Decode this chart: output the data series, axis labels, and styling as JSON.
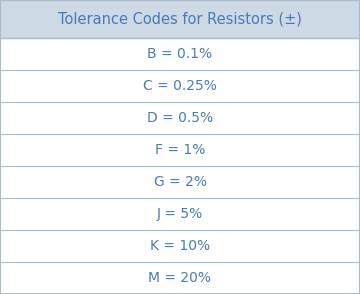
{
  "title": "Tolerance Codes for Resistors (±)",
  "rows": [
    "B = 0.1%",
    "C = 0.25%",
    "D = 0.5%",
    "F = 1%",
    "G = 2%",
    "J = 5%",
    "K = 10%",
    "M = 20%"
  ],
  "header_bg": "#cdd9e5",
  "row_bg": "#ffffff",
  "text_color": "#4a7ab5",
  "border_color": "#aabccc",
  "outer_border_color": "#aabccc",
  "title_fontsize": 10.5,
  "row_fontsize": 10,
  "fig_bg": "#ffffff",
  "figwidth": 3.6,
  "figheight": 2.94,
  "dpi": 100
}
